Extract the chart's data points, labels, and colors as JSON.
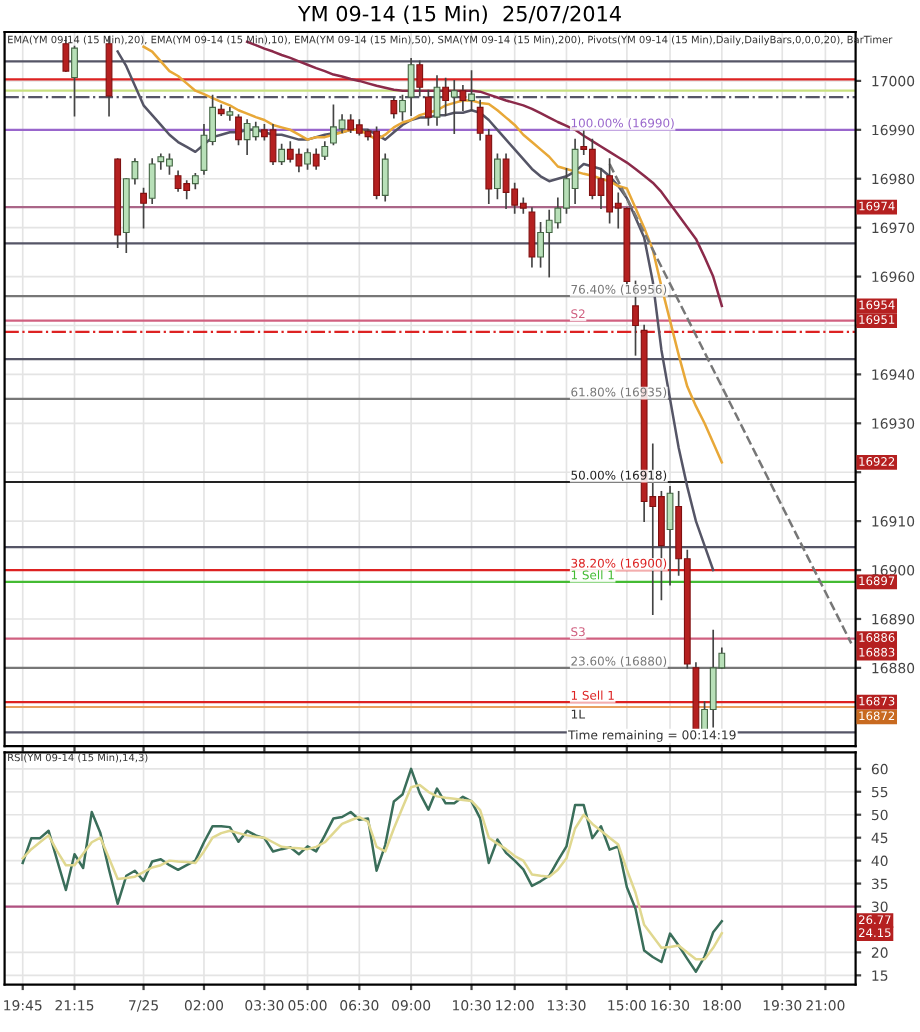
{
  "chart_data": [
    {
      "type": "candlestick",
      "title": "YM 09-14 (15 Min)  25/07/2014",
      "categories": [
        null,
        null,
        null,
        null,
        null,
        null,
        null,
        null,
        null,
        null,
        null,
        null,
        null,
        null,
        null,
        null,
        null,
        null,
        null,
        null,
        null,
        null,
        null,
        null,
        null,
        null,
        null,
        null,
        null,
        null,
        null,
        null,
        null,
        null,
        null,
        null,
        null,
        null,
        null,
        null,
        null,
        null,
        null,
        null,
        null,
        null,
        null,
        null,
        null,
        null,
        null,
        null,
        null,
        null,
        null,
        null,
        null,
        null,
        null,
        null,
        null,
        null,
        null,
        null,
        null,
        null,
        null,
        null,
        null,
        null,
        null,
        null,
        null,
        null,
        null,
        null,
        null,
        null,
        null,
        null,
        null,
        null,
        null,
        null,
        null,
        null,
        null,
        null,
        null,
        null,
        null,
        null,
        null,
        null,
        null,
        null,
        null
      ],
      "ohlc": [
        null,
        null,
        null,
        null,
        null,
        [
          17007.6,
          17009,
          17002,
          17002
        ],
        [
          17000.7,
          17007,
          16992.9,
          17006.7
        ],
        null,
        null,
        null,
        [
          17007.6,
          17009,
          16992.9,
          16996.9
        ],
        [
          16984,
          16984,
          16966,
          16968.5
        ],
        [
          16969,
          16980,
          16965,
          16980
        ],
        [
          16980,
          16984,
          16979,
          16983.5
        ],
        [
          16977,
          16978,
          16970,
          16975
        ],
        [
          16976,
          16984,
          16975,
          16983
        ],
        [
          16983.5,
          16985,
          16982,
          16984.5
        ],
        [
          16982.6,
          16985,
          16981,
          16984
        ],
        [
          16980.6,
          16981.5,
          16977.5,
          16978
        ],
        [
          16979,
          16979.5,
          16976,
          16977.6
        ],
        [
          16979,
          16981,
          16978,
          16980.6
        ],
        [
          16981.7,
          16991,
          16981,
          16988.9
        ],
        [
          16987.6,
          16997,
          16987,
          16994.6
        ],
        [
          16994.2,
          16995,
          16993,
          16993.3
        ],
        [
          16993,
          16994.5,
          16992,
          16993.7
        ],
        [
          16992.6,
          16993,
          16987,
          16988
        ],
        [
          16988,
          16992,
          16985,
          16991.3
        ],
        [
          16988.6,
          16991.5,
          16988,
          16990.6
        ],
        [
          16990,
          16991,
          16988,
          16988.6
        ],
        [
          16990,
          16991,
          16983,
          16983.5
        ],
        [
          16983.5,
          16987,
          16983,
          16986
        ],
        [
          16986,
          16987.5,
          16983.5,
          16984
        ],
        [
          16985,
          16986,
          16981.5,
          16982.6
        ],
        [
          16983,
          16986,
          16982,
          16985.3
        ],
        [
          16985,
          16986,
          16982,
          16982.6
        ],
        [
          16984.6,
          16987.5,
          16984,
          16986.6
        ],
        [
          16987.3,
          16995,
          16987,
          16990.6
        ],
        [
          16990.2,
          16993,
          16989.5,
          16992
        ],
        [
          16992,
          16993,
          16989.5,
          16990
        ],
        [
          16991,
          16992,
          16989,
          16989.3
        ],
        [
          16989.7,
          16990,
          16988,
          16988.6
        ],
        [
          16989.7,
          16990.5,
          16976,
          16976.6
        ],
        [
          16976.6,
          16985,
          16975.5,
          16984
        ],
        [
          16996,
          16996.5,
          16992.5,
          16993.3
        ],
        [
          16993.7,
          16997,
          16992,
          16996
        ],
        [
          16996.7,
          17004.5,
          16993,
          17003.3
        ],
        [
          17003.3,
          17004,
          16997,
          16998.7
        ],
        [
          16996.7,
          16998,
          16991,
          16992.6
        ],
        [
          16992.6,
          17001,
          16991,
          16998.7
        ],
        [
          16998.7,
          17000.5,
          16993,
          16996
        ],
        [
          16996.7,
          17000,
          16989.3,
          16998
        ],
        [
          16998,
          16999,
          16994,
          16996
        ],
        [
          16996,
          17002,
          16994,
          16997.3
        ],
        [
          16994.6,
          16996,
          16988,
          16989.3
        ],
        [
          16988.9,
          16990,
          16975,
          16977.9
        ],
        [
          16978,
          16985,
          16976,
          16984
        ],
        [
          16984,
          16985,
          16974,
          16977.2
        ],
        [
          16977.9,
          16979,
          16973,
          16974.6
        ],
        [
          16975,
          16976,
          16973,
          16974
        ],
        [
          16973.2,
          16974,
          16962,
          16964
        ],
        [
          16964,
          16971,
          16962,
          16969
        ],
        [
          16969,
          16973.5,
          16960,
          16971.5
        ],
        [
          16971,
          16976,
          16970,
          16974
        ],
        [
          16974,
          16982,
          16973,
          16980
        ],
        [
          16978,
          16988,
          16975,
          16986
        ],
        [
          16986.6,
          16990,
          16985,
          16986
        ],
        [
          16986,
          16988,
          16976,
          16976.6
        ],
        [
          16980,
          16982,
          16974,
          16976.6
        ],
        [
          16980.6,
          16984,
          16971,
          16973.2
        ],
        [
          16975,
          16977,
          16970,
          16974
        ],
        [
          16973.9,
          16974,
          16958,
          16959
        ],
        [
          16954,
          16959,
          16944,
          16950
        ],
        [
          16949,
          16950,
          16910,
          16914
        ],
        [
          16915,
          16925.7,
          16891,
          16913
        ],
        [
          16915,
          16916,
          16894,
          16905
        ],
        [
          16908.3,
          16917,
          16897,
          16915.7
        ],
        [
          16913,
          16916,
          16899,
          16902.3
        ],
        [
          16902.3,
          16904,
          16880,
          16880.8
        ],
        [
          16880,
          16881,
          16865,
          16867
        ],
        [
          16867,
          16873,
          16865,
          16871.5
        ],
        [
          16871.5,
          16887.6,
          16868,
          16880
        ],
        [
          16880,
          16884,
          16880,
          16883
        ],
        null,
        null,
        null,
        null,
        null,
        null,
        null,
        null,
        null,
        null,
        null,
        null,
        null,
        null,
        null
      ],
      "series": [
        {
          "type": "line",
          "color": "#555566",
          "values": [
            null,
            null,
            null,
            null,
            null,
            null,
            null,
            null,
            null,
            null,
            null,
            17006,
            17003,
            16999,
            16995,
            16993,
            16991,
            16989,
            16987.5,
            16986.5,
            16985.5,
            16987,
            16988.5,
            16989,
            16989.5,
            16989.5,
            16990,
            16990,
            16989.5,
            16989,
            16989,
            16988.5,
            16988,
            16988,
            16988.5,
            16989,
            16989.3,
            16989.5,
            16990,
            16990,
            16990,
            16989,
            16988,
            16989.5,
            16991,
            16992,
            16992.5,
            16992.5,
            16993,
            16993,
            16993.5,
            16993.5,
            16994,
            16993.5,
            16992,
            16990,
            16988,
            16986,
            16984,
            16982,
            16980.5,
            16979.5,
            16980,
            16980.5,
            16981.5,
            16983,
            16982.5,
            16982,
            16980.5,
            16978.5,
            16976,
            16972,
            16968,
            16959,
            16945,
            16935,
            16925,
            16917,
            16910,
            16905,
            16900,
            null,
            null,
            null,
            null,
            null,
            null,
            null,
            null,
            null,
            null,
            null,
            null,
            null,
            null,
            null,
            null
          ]
        },
        {
          "type": "line",
          "color": "#e8a838",
          "values": [
            null,
            null,
            null,
            null,
            null,
            null,
            null,
            null,
            null,
            null,
            null,
            null,
            null,
            null,
            17007,
            17006,
            17004,
            17002,
            17001,
            16999.5,
            16998,
            16997.3,
            16996.5,
            16995.7,
            16995,
            16994,
            16993.3,
            16992.6,
            16992,
            16991,
            16990.5,
            16990,
            16989,
            16988,
            16988.5,
            16988.5,
            16989,
            16989.5,
            16990,
            16990,
            16989,
            16988,
            16989,
            16990.5,
            16991.5,
            16992,
            16993,
            16993.5,
            16994,
            16995,
            16995.5,
            16996,
            16996,
            16995.5,
            16995.3,
            16994,
            16992.5,
            16991,
            16989,
            16987.5,
            16986,
            16984.5,
            16982.5,
            16982,
            16981.5,
            16981,
            16980.6,
            16980,
            16979.5,
            16978.5,
            16978,
            16974,
            16970,
            16965.5,
            16958,
            16951,
            16944,
            16937.5,
            16933.5,
            16930,
            16926,
            16922,
            null,
            null,
            null,
            null,
            null,
            null,
            null,
            null,
            null,
            null,
            null,
            null,
            null,
            null,
            null
          ]
        },
        {
          "type": "line",
          "color": "#8b2a4a",
          "values": [
            null,
            null,
            null,
            null,
            null,
            null,
            null,
            null,
            null,
            null,
            null,
            null,
            null,
            null,
            null,
            null,
            null,
            null,
            null,
            null,
            null,
            null,
            null,
            null,
            null,
            null,
            17008,
            17007.3,
            17006.6,
            17006,
            17005.3,
            17004.7,
            17004,
            17003.3,
            17002.6,
            17002,
            17001.3,
            17000.9,
            17000.4,
            17000,
            16999.5,
            16999,
            16998.6,
            16998.2,
            16998,
            16998,
            16998,
            16998,
            16998,
            16998,
            16998,
            16998,
            16998,
            16997.8,
            16997.2,
            16996.6,
            16996,
            16995.5,
            16995,
            16994.3,
            16993.4,
            16992.5,
            16991.6,
            16990.8,
            16990,
            16988.8,
            16987.7,
            16986.6,
            16985.5,
            16984.4,
            16983.3,
            16982,
            16980.6,
            16979.2,
            16977.3,
            16974.9,
            16972.5,
            16970.1,
            16967.7,
            16964,
            16960,
            16954,
            null,
            null,
            null,
            null,
            null,
            null,
            null,
            null,
            null,
            null,
            null,
            null,
            null,
            null,
            null
          ]
        },
        {
          "type": "line",
          "color": "#777777",
          "line_style": "dashed",
          "values": [
            null,
            null,
            null,
            null,
            null,
            null,
            null,
            null,
            null,
            null,
            null,
            null,
            null,
            null,
            null,
            null,
            null,
            null,
            null,
            null,
            null,
            null,
            null,
            null,
            null,
            null,
            null,
            null,
            null,
            null,
            null,
            null,
            null,
            null,
            null,
            null,
            null,
            null,
            null,
            null,
            null,
            null,
            null,
            null,
            null,
            null,
            null,
            null,
            null,
            null,
            null,
            null,
            null,
            null,
            null,
            null,
            null,
            null,
            null,
            null,
            null,
            null,
            null,
            null,
            null,
            null,
            null,
            null,
            16983,
            16979.5,
            16976,
            16972.5,
            16969,
            16965.5,
            16962,
            16958.5,
            16955,
            16951.5,
            16948,
            16944.5,
            16941,
            16937.5,
            16934,
            16930.5,
            16927,
            16923.5,
            16920,
            16916.5,
            16913,
            16909.5,
            16906,
            16902.5,
            16899,
            16895.5,
            16892,
            16888.5,
            16885
          ]
        }
      ],
      "ylim": [
        16864,
        17010
      ],
      "yticks": [
        16880,
        16890,
        16900,
        16910,
        {
          "value": 16920,
          "label": null
        },
        16930,
        16940,
        {
          "value": 16950,
          "label": null
        },
        16960,
        16970,
        16980,
        16990,
        17000
      ],
      "tick_labels": "y",
      "grid": true,
      "ref_lines": [
        {
          "axis": "y",
          "value": 17004,
          "label": null,
          "color": "#555566"
        },
        {
          "axis": "y",
          "value": 17000.3,
          "label": null,
          "color": "#dd2222"
        },
        {
          "axis": "y",
          "value": 16998,
          "label": null,
          "color": "#c8e080"
        },
        {
          "axis": "y",
          "value": 16996.7,
          "label": null,
          "color": "#555566",
          "line_style": "dashed"
        },
        {
          "axis": "y",
          "value": 16990,
          "label": "100.00% (16990)",
          "color": "#9966cc"
        },
        {
          "axis": "y",
          "value": 16974.2,
          "label": null,
          "color": "#aa6688"
        },
        {
          "axis": "y",
          "value": 16966.8,
          "label": null,
          "color": "#555566"
        },
        {
          "axis": "y",
          "value": 16956,
          "label": "76.40% (16956)",
          "color": "#777777"
        },
        {
          "axis": "y",
          "value": 16951,
          "label": "S2",
          "color": "#d06080"
        },
        {
          "axis": "y",
          "value": 16948.7,
          "label": null,
          "color": "#dd2222",
          "line_style": "dashed"
        },
        {
          "axis": "y",
          "value": 16943.1,
          "label": null,
          "color": "#555566"
        },
        {
          "axis": "y",
          "value": 16935,
          "label": "61.80% (16935)",
          "color": "#777777"
        },
        {
          "axis": "y",
          "value": 16918,
          "label": "50.00% (16918)",
          "color": "#222222"
        },
        {
          "axis": "y",
          "value": 16904.7,
          "label": null,
          "color": "#555566"
        },
        {
          "axis": "y",
          "value": 16900,
          "label": "38.20% (16900)",
          "color": "#dd2222"
        },
        {
          "axis": "y",
          "value": 16897.6,
          "label": "1 Sell 1",
          "color": "#44bb33"
        },
        {
          "axis": "y",
          "value": 16886,
          "label": "S3",
          "color": "#d06080"
        },
        {
          "axis": "y",
          "value": 16880,
          "label": "23.60% (16880)",
          "color": "#777777"
        },
        {
          "axis": "y",
          "value": 16873,
          "label": "1 Sell 1",
          "color": "#dd2222"
        },
        {
          "axis": "y",
          "value": 16872,
          "label": null,
          "color": "#e8a060"
        },
        {
          "axis": "y",
          "value": 16866.8,
          "label": null,
          "color": "#555566"
        }
      ],
      "annotations": [
        "EMA(YM 09-14 (15 Min),20), EMA(YM 09-14 (15 Min),10), EMA(YM 09-14 (15 Min),50), SMA(YM 09-14 (15 Min),200), Pivots(YM 09-14 (15 Min),Daily,DailyBars,0,0,0,20), BarTimer",
        "Time remaining = 00:14:19",
        "1L",
        "16872",
        {
          "text": "16974",
          "y": 16974.2
        },
        {
          "text": "16954",
          "y": 16954
        },
        {
          "text": "16951",
          "y": 16951
        },
        {
          "text": "16922",
          "y": 16922
        },
        {
          "text": "16897",
          "y": 16897.6
        },
        {
          "text": "16886",
          "y": 16886
        },
        {
          "text": "16883",
          "y": 16883
        },
        {
          "text": "16873",
          "y": 16873
        }
      ]
    },
    {
      "type": "line",
      "categories": [
        "19:45",
        null,
        null,
        null,
        null,
        null,
        "21:15",
        null,
        null,
        null,
        null,
        null,
        null,
        null,
        "7/25",
        null,
        null,
        null,
        null,
        null,
        null,
        "02:00",
        null,
        null,
        null,
        null,
        null,
        null,
        "03:30",
        null,
        null,
        null,
        null,
        "05:00",
        null,
        null,
        null,
        null,
        null,
        "06:30",
        null,
        null,
        null,
        null,
        null,
        "09:00",
        null,
        null,
        null,
        null,
        null,
        null,
        "10:30",
        null,
        null,
        null,
        null,
        "12:00",
        null,
        null,
        null,
        null,
        null,
        "13:30",
        null,
        null,
        null,
        null,
        null,
        null,
        "15:00",
        null,
        null,
        null,
        null,
        "16:30",
        null,
        null,
        null,
        null,
        null,
        "18:00",
        null,
        null,
        null,
        null,
        null,
        null,
        "19:30",
        null,
        null,
        null,
        null,
        "21:00",
        null,
        null,
        null
      ],
      "series": [
        {
          "color": "#3a6e5a",
          "values": [
            39.5,
            44.9,
            44.9,
            46.5,
            40,
            33.6,
            41.4,
            38.4,
            50.6,
            46,
            38,
            30.6,
            36.7,
            37.8,
            35.6,
            39.8,
            40.3,
            39,
            38,
            39,
            40,
            44,
            47.5,
            47.5,
            47.3,
            44.1,
            46.5,
            45.5,
            44.9,
            42,
            42.5,
            42.9,
            41.4,
            43.1,
            42,
            45.5,
            49.2,
            49.5,
            50.6,
            48.9,
            49.2,
            37.8,
            43.4,
            52.9,
            54.4,
            60,
            54.7,
            51.1,
            55.7,
            52.5,
            52.5,
            53.9,
            52.9,
            49.2,
            39.5,
            44.6,
            41.7,
            40,
            38.1,
            34.5,
            35.5,
            36.7,
            40,
            43.1,
            52.1,
            52.1,
            44.9,
            47.5,
            42.4,
            43.1,
            34.2,
            29.5,
            20.4,
            19,
            17.9,
            24.1,
            21.5,
            18.6,
            15.8,
            19.1,
            24.4,
            26.8,
            null,
            null,
            null,
            null,
            null,
            null,
            null,
            null,
            null,
            null,
            null,
            null,
            null,
            null,
            null
          ]
        },
        {
          "color": "#e0d890",
          "values": [
            40.5,
            42.5,
            44,
            45.5,
            42,
            39,
            39,
            41.5,
            44,
            45,
            40.5,
            36,
            36.2,
            36.5,
            37.5,
            38.5,
            39,
            40,
            39.8,
            39.7,
            39.5,
            42,
            45,
            46,
            46.5,
            46,
            45.5,
            45.2,
            45,
            44,
            43,
            42.8,
            42.7,
            42.5,
            43,
            44,
            46,
            48,
            48.8,
            49.5,
            48.5,
            43,
            42,
            47,
            51.5,
            56,
            56.5,
            55,
            54,
            53.7,
            53.5,
            53.2,
            53,
            51,
            45,
            43.7,
            42.5,
            41,
            40,
            37,
            36.7,
            36.5,
            38,
            40.5,
            47,
            50,
            48,
            46.5,
            45,
            43.5,
            38,
            33,
            26,
            23.5,
            21,
            21.2,
            21.5,
            20,
            18.5,
            18.5,
            21,
            24.2,
            null,
            null,
            null,
            null,
            null,
            null,
            null,
            null,
            null,
            null,
            null,
            null,
            null,
            null,
            null
          ]
        }
      ],
      "ylim": [
        13,
        63.6
      ],
      "yticks": [
        15,
        20,
        30,
        35,
        40,
        45,
        50,
        55,
        60
      ],
      "grid": true,
      "ref_lines": [
        {
          "axis": "y",
          "value": 30,
          "label": null,
          "color": "#b05080"
        }
      ],
      "annotations": [
        "RSI(YM 09-14 (15 Min),14,3)",
        {
          "text": "26.77",
          "y": 26.8
        },
        {
          "text": "24.15",
          "y": 24.2
        }
      ]
    }
  ]
}
